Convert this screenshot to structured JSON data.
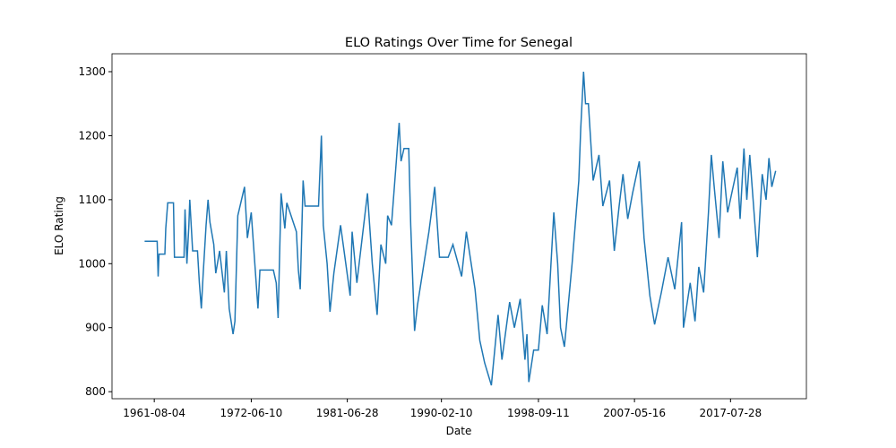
{
  "chart_data": {
    "type": "line",
    "title": "ELO Ratings Over Time for Senegal",
    "xlabel": "Date",
    "ylabel": "ELO Rating",
    "color": "#1f77b4",
    "x": [
      0,
      13,
      14,
      15,
      21,
      22,
      24,
      30,
      31,
      41,
      42,
      44,
      46,
      47,
      50,
      55,
      57,
      59,
      61,
      64,
      66,
      68,
      72,
      74,
      78,
      83,
      85,
      88,
      92,
      94,
      97,
      104,
      107,
      111,
      118,
      120,
      134,
      137,
      139,
      142,
      146,
      148,
      158,
      160,
      162,
      165,
      167,
      181,
      184,
      186,
      190,
      193,
      197,
      204,
      214,
      216,
      221,
      232,
      237,
      242,
      246,
      251,
      253,
      257,
      262,
      265,
      267,
      270,
      275,
      277,
      281,
      284,
      296,
      302,
      307,
      316,
      321,
      330,
      335,
      344,
      349,
      354,
      361,
      368,
      372,
      380,
      385,
      391,
      396,
      398,
      400,
      405,
      410,
      414,
      419,
      426,
      430,
      433,
      437,
      441,
      445,
      452,
      454,
      457,
      459,
      462,
      467,
      473,
      477,
      484,
      489,
      494,
      498,
      503,
      508,
      515,
      520,
      526,
      531,
      538,
      545,
      552,
      559,
      561,
      564,
      568,
      573,
      577,
      582,
      587,
      590,
      593,
      598,
      602,
      607,
      617,
      620,
      624,
      627,
      630,
      638,
      643,
      647,
      650,
      653,
      657
    ],
    "values": [
      1035,
      1035,
      980,
      1015,
      1015,
      1055,
      1095,
      1095,
      1010,
      1010,
      1085,
      1000,
      1060,
      1100,
      1020,
      1020,
      970,
      930,
      985,
      1060,
      1100,
      1065,
      1030,
      985,
      1020,
      955,
      1020,
      930,
      890,
      910,
      1075,
      1120,
      1040,
      1080,
      930,
      990,
      990,
      970,
      915,
      1110,
      1055,
      1095,
      1050,
      990,
      960,
      1130,
      1090,
      1090,
      1200,
      1060,
      1000,
      925,
      985,
      1060,
      950,
      1050,
      970,
      1110,
      1000,
      920,
      1030,
      1000,
      1075,
      1060,
      1160,
      1220,
      1160,
      1180,
      1180,
      1060,
      895,
      935,
      1050,
      1120,
      1010,
      1010,
      1030,
      980,
      1050,
      960,
      880,
      845,
      810,
      920,
      850,
      940,
      900,
      945,
      850,
      890,
      815,
      865,
      865,
      935,
      890,
      1080,
      1000,
      900,
      870,
      935,
      1000,
      1130,
      1210,
      1300,
      1250,
      1250,
      1130,
      1170,
      1090,
      1130,
      1020,
      1090,
      1140,
      1070,
      1110,
      1160,
      1040,
      950,
      905,
      955,
      1010,
      960,
      1065,
      900,
      930,
      970,
      910,
      995,
      955,
      1080,
      1170,
      1120,
      1040,
      1160,
      1080,
      1150,
      1070,
      1180,
      1100,
      1170,
      1010,
      1140,
      1100,
      1165,
      1120,
      1145
    ],
    "xlim": [
      -34,
      689
    ],
    "xticks": [
      {
        "value": 10,
        "label": "1961-08-04"
      },
      {
        "value": 111,
        "label": "1972-06-10"
      },
      {
        "value": 211,
        "label": "1981-06-28"
      },
      {
        "value": 309,
        "label": "1990-02-10"
      },
      {
        "value": 410,
        "label": "1998-09-11"
      },
      {
        "value": 510,
        "label": "2007-05-16"
      },
      {
        "value": 610,
        "label": "2017-07-28"
      }
    ],
    "ylim": [
      789,
      1328
    ],
    "yticks": [
      800,
      900,
      1000,
      1100,
      1200,
      1300
    ]
  }
}
